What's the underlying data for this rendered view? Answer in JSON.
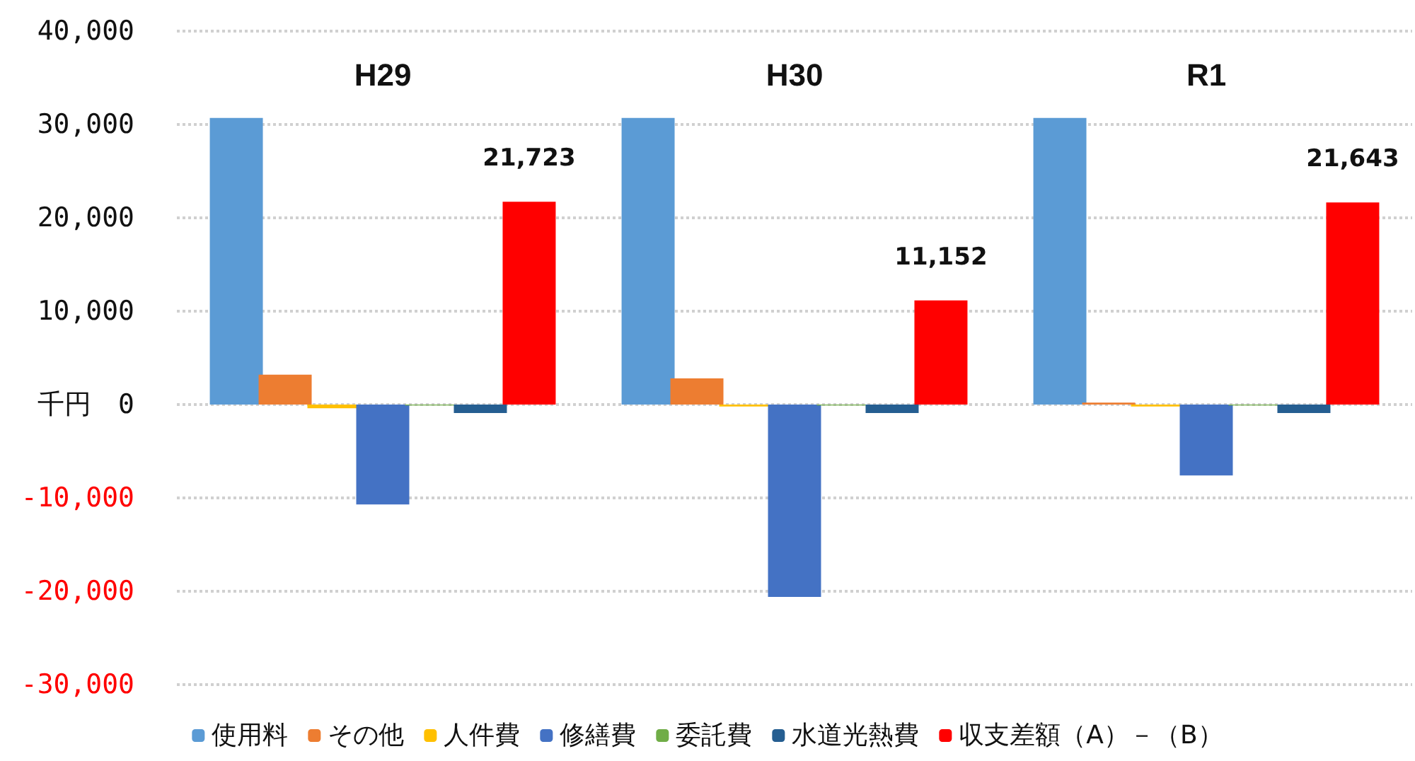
{
  "chart_data": {
    "type": "bar",
    "categories": [
      "H29",
      "H30",
      "R1"
    ],
    "series": [
      {
        "name": "使用料",
        "color": "#5b9bd5",
        "values": [
          30700,
          30700,
          30700
        ]
      },
      {
        "name": "その他",
        "color": "#ed7d31",
        "values": [
          3200,
          2800,
          200
        ]
      },
      {
        "name": "人件費",
        "color": "#ffc000",
        "values": [
          -400,
          -200,
          -200
        ]
      },
      {
        "name": "修繕費",
        "color": "#4472c4",
        "values": [
          -10700,
          -20600,
          -7600
        ]
      },
      {
        "name": "委託費",
        "color": "#70ad47",
        "values": [
          -100,
          -100,
          -100
        ]
      },
      {
        "name": "水道光熱費",
        "color": "#255e91",
        "values": [
          -900,
          -900,
          -900
        ]
      },
      {
        "name": "収支差額（A）－（B）",
        "color": "#ff0000",
        "values": [
          21723,
          11152,
          21643
        ],
        "value_labels": [
          "21,723",
          "11,152",
          "21,643"
        ]
      }
    ],
    "ylim": [
      -30000,
      40000
    ],
    "yticks": [
      {
        "value": -30000,
        "label": "-30,000"
      },
      {
        "value": -20000,
        "label": "-20,000"
      },
      {
        "value": -10000,
        "label": "-10,000"
      },
      {
        "value": 0,
        "label": "千円　0"
      },
      {
        "value": 10000,
        "label": "10,000"
      },
      {
        "value": 20000,
        "label": "20,000"
      },
      {
        "value": 30000,
        "label": "30,000"
      },
      {
        "value": 40000,
        "label": "40,000"
      }
    ],
    "grid": "y",
    "legend": "bottom"
  }
}
